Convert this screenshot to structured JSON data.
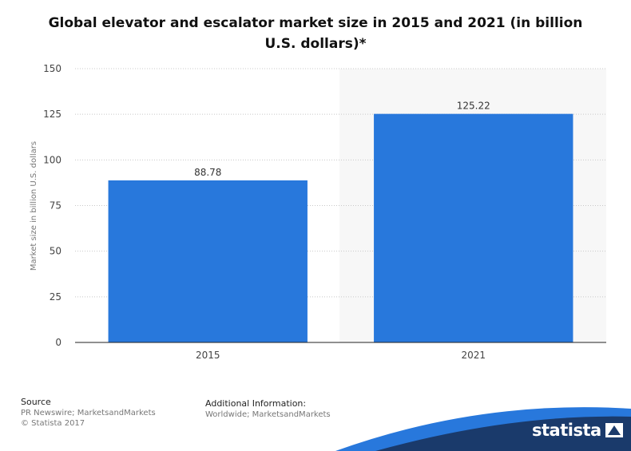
{
  "chart_data": {
    "type": "bar",
    "title": "Global elevator and escalator market size in 2015 and 2021 (in billion U.S. dollars)*",
    "xlabel": "",
    "ylabel": "Market size in billion U.S. dollars",
    "categories": [
      "2015",
      "2021"
    ],
    "values": [
      88.78,
      125.22
    ],
    "data_labels": [
      "88.78",
      "125.22"
    ],
    "ylim": [
      0,
      150
    ],
    "yticks": [
      0,
      25,
      50,
      75,
      100,
      125,
      150
    ],
    "grid": true,
    "bar_color": "#2878dc"
  },
  "footer": {
    "source_heading": "Source",
    "source_lines": [
      "PR Newswire; MarketsandMarkets",
      "© Statista 2017"
    ],
    "info_heading": "Additional Information:",
    "info_lines": [
      "Worldwide; MarketsandMarkets"
    ]
  },
  "brand": {
    "name": "statista",
    "accent_color": "#1a3a6b",
    "wave_color": "#2878dc"
  }
}
